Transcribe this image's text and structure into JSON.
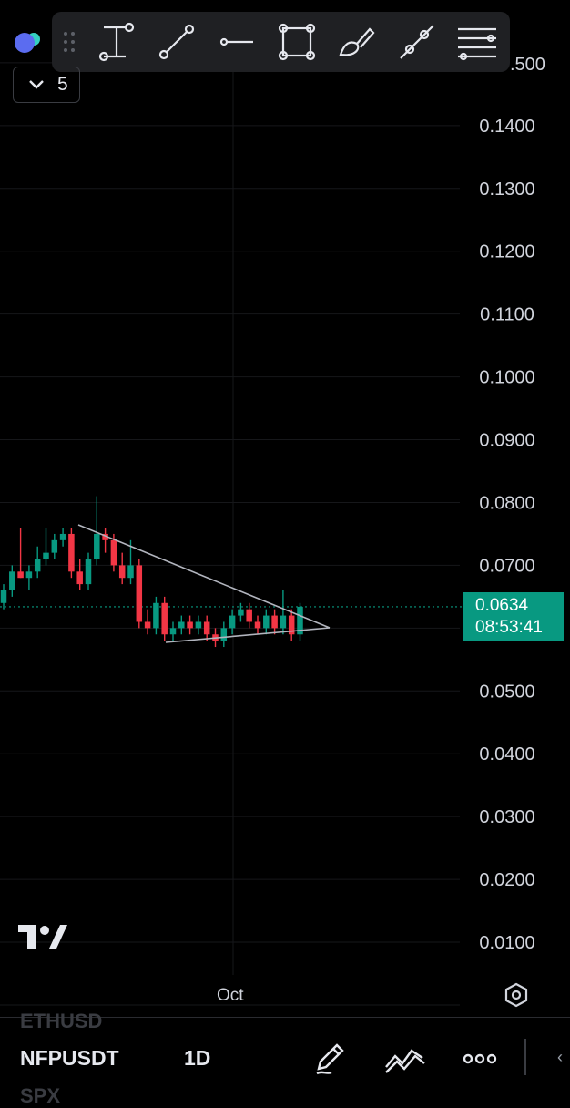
{
  "header": {
    "interval_count": "5"
  },
  "toolbar": {
    "tools": [
      "text-cursor-tool",
      "trend-line-tool",
      "horizontal-line-tool",
      "rectangle-tool",
      "brush-tool",
      "ray-tool",
      "more-tools"
    ]
  },
  "chart_data": {
    "type": "candlestick",
    "y_ticks": [
      "0.0100",
      "0.0200",
      "0.0300",
      "0.0400",
      "0.0500",
      "0.0700",
      "0.0800",
      "0.0900",
      "0.1000",
      "0.1100",
      "0.1200",
      "0.1300",
      "0.1400"
    ],
    "y_top_partial": ".500",
    "x_ticks": [
      "Oct"
    ],
    "ylim": [
      0.0,
      0.156
    ],
    "last_price": "0.0634",
    "countdown": "08:53:41",
    "up_color": "#089981",
    "down_color": "#f23645",
    "candles": [
      {
        "o": 0.064,
        "h": 0.067,
        "l": 0.063,
        "c": 0.066
      },
      {
        "o": 0.066,
        "h": 0.07,
        "l": 0.065,
        "c": 0.069
      },
      {
        "o": 0.069,
        "h": 0.076,
        "l": 0.068,
        "c": 0.068
      },
      {
        "o": 0.068,
        "h": 0.07,
        "l": 0.066,
        "c": 0.069
      },
      {
        "o": 0.069,
        "h": 0.073,
        "l": 0.068,
        "c": 0.071
      },
      {
        "o": 0.071,
        "h": 0.076,
        "l": 0.07,
        "c": 0.072
      },
      {
        "o": 0.072,
        "h": 0.075,
        "l": 0.071,
        "c": 0.074
      },
      {
        "o": 0.074,
        "h": 0.076,
        "l": 0.073,
        "c": 0.075
      },
      {
        "o": 0.075,
        "h": 0.076,
        "l": 0.068,
        "c": 0.069
      },
      {
        "o": 0.069,
        "h": 0.071,
        "l": 0.066,
        "c": 0.067
      },
      {
        "o": 0.067,
        "h": 0.072,
        "l": 0.066,
        "c": 0.071
      },
      {
        "o": 0.071,
        "h": 0.081,
        "l": 0.07,
        "c": 0.075
      },
      {
        "o": 0.075,
        "h": 0.076,
        "l": 0.072,
        "c": 0.074
      },
      {
        "o": 0.074,
        "h": 0.075,
        "l": 0.069,
        "c": 0.07
      },
      {
        "o": 0.07,
        "h": 0.072,
        "l": 0.067,
        "c": 0.068
      },
      {
        "o": 0.068,
        "h": 0.074,
        "l": 0.067,
        "c": 0.07
      },
      {
        "o": 0.07,
        "h": 0.071,
        "l": 0.06,
        "c": 0.061
      },
      {
        "o": 0.061,
        "h": 0.063,
        "l": 0.059,
        "c": 0.06
      },
      {
        "o": 0.06,
        "h": 0.065,
        "l": 0.059,
        "c": 0.064
      },
      {
        "o": 0.064,
        "h": 0.065,
        "l": 0.058,
        "c": 0.059
      },
      {
        "o": 0.059,
        "h": 0.061,
        "l": 0.058,
        "c": 0.06
      },
      {
        "o": 0.06,
        "h": 0.062,
        "l": 0.059,
        "c": 0.061
      },
      {
        "o": 0.061,
        "h": 0.062,
        "l": 0.059,
        "c": 0.06
      },
      {
        "o": 0.06,
        "h": 0.062,
        "l": 0.059,
        "c": 0.061
      },
      {
        "o": 0.061,
        "h": 0.062,
        "l": 0.058,
        "c": 0.059
      },
      {
        "o": 0.059,
        "h": 0.06,
        "l": 0.057,
        "c": 0.058
      },
      {
        "o": 0.058,
        "h": 0.061,
        "l": 0.057,
        "c": 0.06
      },
      {
        "o": 0.06,
        "h": 0.063,
        "l": 0.059,
        "c": 0.062
      },
      {
        "o": 0.062,
        "h": 0.064,
        "l": 0.061,
        "c": 0.063
      },
      {
        "o": 0.063,
        "h": 0.064,
        "l": 0.06,
        "c": 0.061
      },
      {
        "o": 0.061,
        "h": 0.062,
        "l": 0.059,
        "c": 0.06
      },
      {
        "o": 0.06,
        "h": 0.063,
        "l": 0.059,
        "c": 0.062
      },
      {
        "o": 0.062,
        "h": 0.063,
        "l": 0.059,
        "c": 0.06
      },
      {
        "o": 0.06,
        "h": 0.066,
        "l": 0.059,
        "c": 0.062
      },
      {
        "o": 0.062,
        "h": 0.063,
        "l": 0.058,
        "c": 0.059
      },
      {
        "o": 0.059,
        "h": 0.064,
        "l": 0.058,
        "c": 0.0634
      }
    ],
    "grid": true
  },
  "bottom_bar": {
    "symbol_prev": "ETHUSD",
    "symbol": "NFPUSDT",
    "symbol_next": "SPX",
    "timeframe": "1D",
    "icons": [
      "pencil-icon",
      "indicator-icon",
      "more-icon"
    ]
  }
}
